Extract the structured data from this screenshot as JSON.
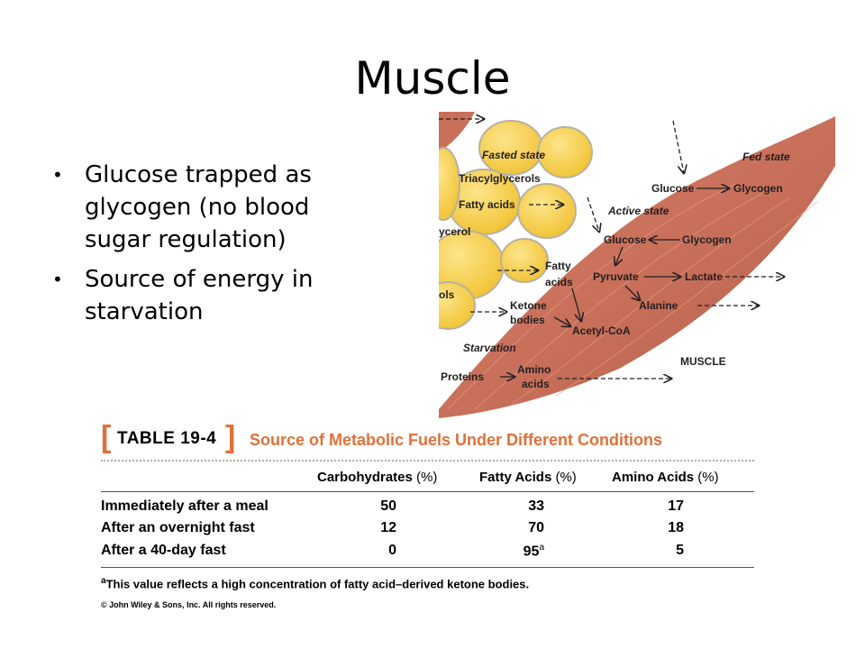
{
  "slide": {
    "title": "Muscle"
  },
  "bullets": [
    {
      "text": "Glucose trapped as glycogen (no blood sugar regulation)"
    },
    {
      "text": "Source of energy in starvation"
    }
  ],
  "diagram": {
    "labels": {
      "fasted_state": "Fasted state",
      "triacylglycerols": "Triacylglycerols",
      "fatty_acids_top": "Fatty acids",
      "cerol": "ycerol",
      "ols": "ols",
      "fed_state": "Fed state",
      "glucose_fed": "Glucose",
      "glycogen_fed": "Glycogen",
      "active_state": "Active state",
      "glucose_active": "Glucose",
      "glycogen_active": "Glycogen",
      "fatty": "Fatty",
      "acids": "acids",
      "pyruvate": "Pyruvate",
      "lactate": "Lactate",
      "alanine": "Alanine",
      "ketone": "Ketone",
      "bodies": "bodies",
      "acetyl_coa": "Acetyl-CoA",
      "starvation": "Starvation",
      "proteins": "Proteins",
      "amino": "Amino",
      "amino_acids": "acids",
      "muscle": "MUSCLE"
    },
    "colors": {
      "muscle": "#c8705a",
      "fat": "#f7cf45",
      "accent": "#e0703a"
    }
  },
  "table": {
    "tag": "TABLE 19-4",
    "caption": "Source of Metabolic Fuels Under Different Conditions",
    "pct": "(%)",
    "columns": [
      "Carbohydrates",
      "Fatty Acids",
      "Amino Acids"
    ],
    "rows": [
      {
        "label": "Immediately after a meal",
        "values": [
          "50",
          "33",
          "17"
        ]
      },
      {
        "label": "After an overnight fast",
        "values": [
          "12",
          "70",
          "18"
        ]
      },
      {
        "label": "After a 40-day fast",
        "values": [
          "0",
          "95",
          "5"
        ]
      }
    ],
    "footnote_marker": "a",
    "footnote": "This value reflects a high concentration of fatty acid–derived ketone bodies.",
    "copyright": "© John Wiley & Sons, Inc. All rights reserved."
  }
}
